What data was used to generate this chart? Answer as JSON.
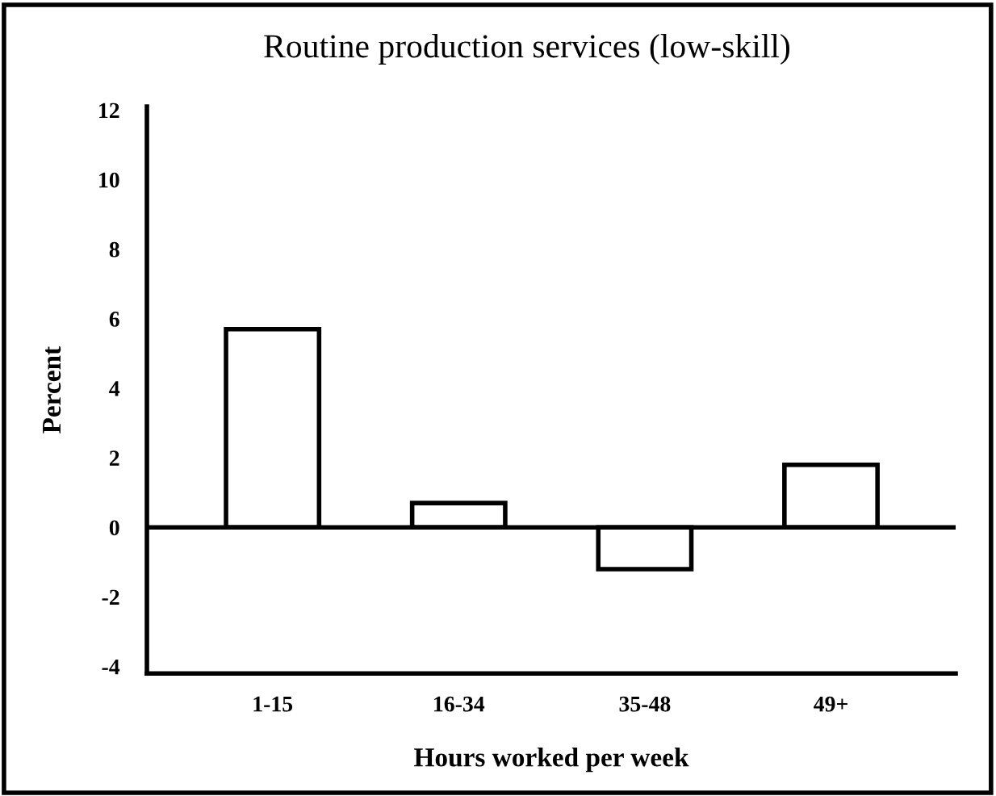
{
  "chart_data": {
    "type": "bar",
    "title": "Routine production services (low-skill)",
    "xlabel": "Hours worked per week",
    "ylabel": "Percent",
    "categories": [
      "1-15",
      "16-34",
      "35-48",
      "49+"
    ],
    "values": [
      5.7,
      0.7,
      -1.2,
      1.8
    ],
    "color": "#ffffff",
    "ylim": [
      -4.2,
      12.1
    ],
    "yticks": [
      -4,
      -2,
      0,
      2,
      4,
      6,
      8,
      10,
      12
    ],
    "ref_lines": [
      {
        "axis": "y",
        "value": 0,
        "color": "#000000"
      }
    ],
    "grid": false,
    "legend": false
  }
}
